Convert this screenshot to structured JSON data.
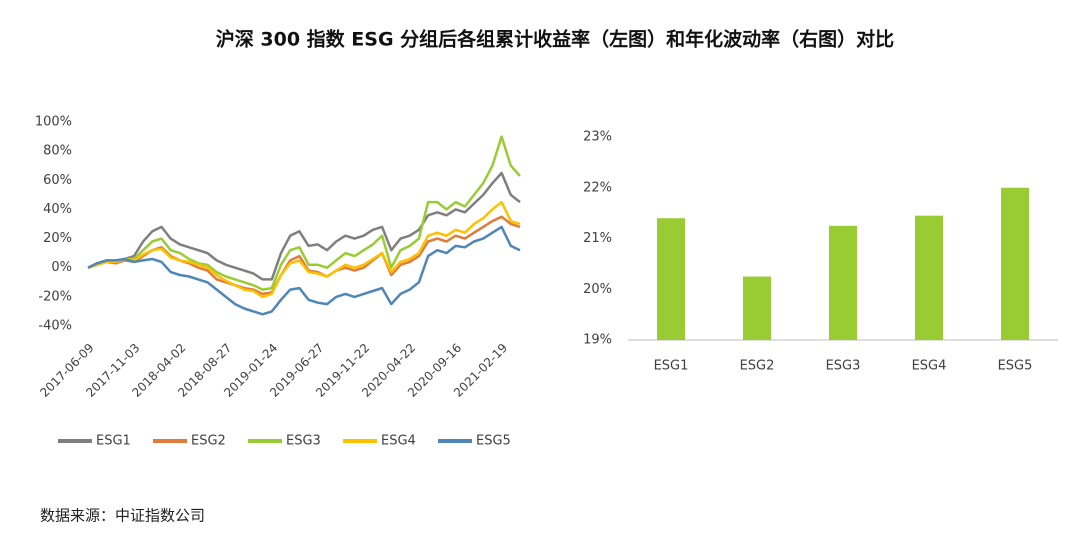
{
  "title": "沪深 300 指数 ESG 分组后各组累计收益率（左图）和年化波动率（右图）对比",
  "source": "数据来源：中证指数公司",
  "chart_data": [
    {
      "type": "line",
      "categories": [
        "2017-06-09",
        null,
        null,
        null,
        null,
        "2017-11-03",
        null,
        null,
        null,
        null,
        "2018-04-02",
        null,
        null,
        null,
        null,
        "2018-08-27",
        null,
        null,
        null,
        null,
        "2019-01-24",
        null,
        null,
        null,
        null,
        "2019-06-27",
        null,
        null,
        null,
        null,
        "2019-11-22",
        null,
        null,
        null,
        null,
        "2020-04-22",
        null,
        null,
        null,
        null,
        "2020-09-16",
        null,
        null,
        null,
        null,
        "2021-02-19",
        null,
        null
      ],
      "ylim": [
        -40,
        100
      ],
      "yticks": [
        {
          "value": -40,
          "label": "-40%"
        },
        {
          "value": -20,
          "label": "-20%"
        },
        {
          "value": 0,
          "label": "0%"
        },
        {
          "value": 20,
          "label": "20%"
        },
        {
          "value": 40,
          "label": "40%"
        },
        {
          "value": 60,
          "label": "60%"
        },
        {
          "value": 80,
          "label": "80%"
        },
        {
          "value": 100,
          "label": "100%"
        }
      ],
      "legend": "bottom",
      "series": [
        {
          "name": "ESG1",
          "color": "#7f7f7f",
          "values": [
            0,
            3,
            5,
            4,
            6,
            8,
            18,
            25,
            28,
            20,
            16,
            14,
            12,
            10,
            5,
            2,
            0,
            -2,
            -4,
            -8,
            -8,
            10,
            22,
            25,
            15,
            16,
            12,
            18,
            22,
            20,
            22,
            26,
            28,
            12,
            20,
            22,
            26,
            36,
            38,
            36,
            40,
            38,
            44,
            50,
            58,
            65,
            50,
            45
          ]
        },
        {
          "name": "ESG2",
          "color": "#e07b39",
          "values": [
            0,
            2,
            4,
            3,
            5,
            4,
            8,
            12,
            14,
            8,
            5,
            3,
            0,
            -2,
            -8,
            -10,
            -12,
            -14,
            -15,
            -18,
            -17,
            -5,
            5,
            8,
            -2,
            -3,
            -6,
            -2,
            0,
            -2,
            0,
            5,
            10,
            -5,
            2,
            4,
            8,
            18,
            20,
            18,
            22,
            20,
            24,
            28,
            32,
            35,
            30,
            28
          ]
        },
        {
          "name": "ESG3",
          "color": "#99cc33",
          "values": [
            0,
            3,
            5,
            4,
            6,
            6,
            12,
            18,
            20,
            12,
            10,
            6,
            3,
            2,
            -3,
            -6,
            -8,
            -10,
            -12,
            -15,
            -14,
            2,
            12,
            14,
            2,
            2,
            0,
            5,
            10,
            8,
            12,
            16,
            22,
            0,
            12,
            15,
            20,
            45,
            45,
            40,
            45,
            42,
            50,
            58,
            70,
            90,
            70,
            63
          ]
        },
        {
          "name": "ESG4",
          "color": "#ffc000",
          "values": [
            0,
            2,
            4,
            4,
            6,
            5,
            9,
            12,
            13,
            7,
            5,
            4,
            2,
            0,
            -5,
            -9,
            -12,
            -15,
            -16,
            -20,
            -18,
            -5,
            3,
            5,
            -3,
            -4,
            -6,
            -2,
            2,
            0,
            2,
            6,
            10,
            -3,
            4,
            6,
            10,
            22,
            24,
            22,
            26,
            24,
            30,
            34,
            40,
            45,
            32,
            30
          ]
        },
        {
          "name": "ESG5",
          "color": "#4e86b8",
          "values": [
            0,
            3,
            5,
            5,
            6,
            4,
            5,
            6,
            4,
            -3,
            -5,
            -6,
            -8,
            -10,
            -15,
            -20,
            -25,
            -28,
            -30,
            -32,
            -30,
            -22,
            -15,
            -14,
            -22,
            -24,
            -25,
            -20,
            -18,
            -20,
            -18,
            -16,
            -14,
            -25,
            -18,
            -15,
            -10,
            8,
            12,
            10,
            15,
            14,
            18,
            20,
            24,
            28,
            15,
            12
          ]
        }
      ]
    },
    {
      "type": "bar",
      "categories": [
        "ESG1",
        "ESG2",
        "ESG3",
        "ESG4",
        "ESG5"
      ],
      "values": [
        21.4,
        20.25,
        21.25,
        21.45,
        22.0
      ],
      "color": "#99cc33",
      "ylim": [
        19,
        23
      ],
      "yticks": [
        {
          "value": 19,
          "label": "19%"
        },
        {
          "value": 20,
          "label": "20%"
        },
        {
          "value": 21,
          "label": "21%"
        },
        {
          "value": 22,
          "label": "22%"
        },
        {
          "value": 23,
          "label": "23%"
        }
      ],
      "grid": false
    }
  ]
}
